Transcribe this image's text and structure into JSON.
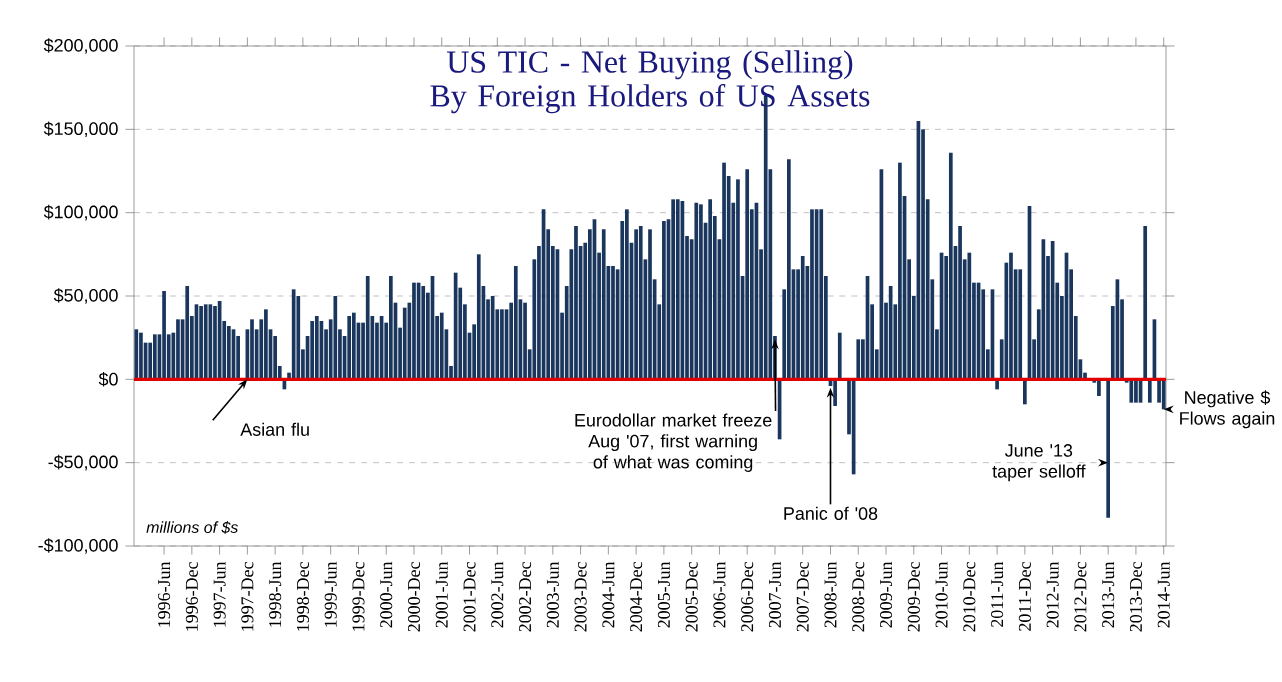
{
  "chart_data": {
    "type": "bar",
    "title": "US TIC - Net Buying (Selling) By Foreign Holders of US Assets",
    "categories": [
      null,
      null,
      null,
      null,
      null,
      null,
      "1996-Jun",
      null,
      null,
      null,
      null,
      null,
      "1996-Dec",
      null,
      null,
      null,
      null,
      null,
      "1997-Jun",
      null,
      null,
      null,
      null,
      null,
      "1997-Dec",
      null,
      null,
      null,
      null,
      null,
      "1998-Jun",
      null,
      null,
      null,
      null,
      null,
      "1998-Dec",
      null,
      null,
      null,
      null,
      null,
      "1999-Jun",
      null,
      null,
      null,
      null,
      null,
      "1999-Dec",
      null,
      null,
      null,
      null,
      null,
      "2000-Jun",
      null,
      null,
      null,
      null,
      null,
      "2000-Dec",
      null,
      null,
      null,
      null,
      null,
      "2001-Jun",
      null,
      null,
      null,
      null,
      null,
      "2001-Dec",
      null,
      null,
      null,
      null,
      null,
      "2002-Jun",
      null,
      null,
      null,
      null,
      null,
      "2002-Dec",
      null,
      null,
      null,
      null,
      null,
      "2003-Jun",
      null,
      null,
      null,
      null,
      null,
      "2003-Dec",
      null,
      null,
      null,
      null,
      null,
      "2004-Jun",
      null,
      null,
      null,
      null,
      null,
      "2004-Dec",
      null,
      null,
      null,
      null,
      null,
      "2005-Jun",
      null,
      null,
      null,
      null,
      null,
      "2005-Dec",
      null,
      null,
      null,
      null,
      null,
      "2006-Jun",
      null,
      null,
      null,
      null,
      null,
      "2006-Dec",
      null,
      null,
      null,
      null,
      null,
      "2007-Jun",
      null,
      null,
      null,
      null,
      null,
      "2007-Dec",
      null,
      null,
      null,
      null,
      null,
      "2008-Jun",
      null,
      null,
      null,
      null,
      null,
      "2008-Dec",
      null,
      null,
      null,
      null,
      null,
      "2009-Jun",
      null,
      null,
      null,
      null,
      null,
      "2009-Dec",
      null,
      null,
      null,
      null,
      null,
      "2010-Jun",
      null,
      null,
      null,
      null,
      null,
      "2010-Dec",
      null,
      null,
      null,
      null,
      null,
      "2011-Jun",
      null,
      null,
      null,
      null,
      null,
      "2011-Dec",
      null,
      null,
      null,
      null,
      null,
      "2012-Jun",
      null,
      null,
      null,
      null,
      null,
      "2012-Dec",
      null,
      null,
      null,
      null,
      null,
      "2013-Jun",
      null,
      null,
      null,
      null,
      null,
      "2013-Dec",
      null,
      null,
      null,
      null,
      null,
      "2014-Jun"
    ],
    "values": [
      30000,
      28000,
      22000,
      22000,
      27000,
      27000,
      53000,
      27000,
      28000,
      36000,
      36000,
      56000,
      38000,
      45000,
      44000,
      45000,
      45000,
      44000,
      47000,
      35000,
      32000,
      30000,
      26000,
      0,
      30000,
      36000,
      30000,
      36000,
      42000,
      30000,
      26000,
      8000,
      -6000,
      4000,
      54000,
      50000,
      18000,
      26000,
      35000,
      38000,
      35000,
      30000,
      36000,
      50000,
      30000,
      26000,
      38000,
      40000,
      34000,
      34000,
      62000,
      38000,
      34000,
      38000,
      34000,
      62000,
      46000,
      31000,
      43000,
      46000,
      58000,
      58000,
      56000,
      52000,
      62000,
      38000,
      40000,
      30000,
      8000,
      64000,
      55000,
      45000,
      28000,
      33000,
      75000,
      56000,
      48000,
      50000,
      42000,
      42000,
      42000,
      46000,
      68000,
      48000,
      46000,
      18000,
      72000,
      80000,
      102000,
      90000,
      80000,
      78000,
      40000,
      56000,
      78000,
      92000,
      80000,
      82000,
      90000,
      96000,
      76000,
      90000,
      68000,
      68000,
      66000,
      95000,
      102000,
      82000,
      90000,
      92000,
      72000,
      90000,
      60000,
      45000,
      95000,
      96000,
      108000,
      108000,
      107000,
      86000,
      84000,
      106000,
      105000,
      94000,
      108000,
      98000,
      84000,
      130000,
      122000,
      106000,
      120000,
      62000,
      126000,
      102000,
      106000,
      78000,
      170000,
      126000,
      26000,
      -36000,
      54000,
      132000,
      66000,
      66000,
      74000,
      68000,
      102000,
      102000,
      102000,
      62000,
      -4000,
      -16000,
      28000,
      0,
      -33000,
      -57000,
      24000,
      24000,
      62000,
      45000,
      18000,
      126000,
      46000,
      56000,
      45000,
      130000,
      110000,
      72000,
      50000,
      155000,
      150000,
      108000,
      60000,
      30000,
      76000,
      74000,
      136000,
      80000,
      92000,
      72000,
      76000,
      58000,
      58000,
      54000,
      18000,
      54000,
      -6000,
      24000,
      70000,
      76000,
      66000,
      66000,
      -15000,
      104000,
      24000,
      42000,
      84000,
      74000,
      83000,
      58000,
      50000,
      76000,
      66000,
      38000,
      12000,
      4000,
      0,
      -2000,
      -10000,
      null,
      -83000,
      44000,
      60000,
      48000,
      -2000,
      -14000,
      -14000,
      -14000,
      92000,
      -14000,
      36000,
      -14000,
      -18000
    ],
    "color": "#1b365d",
    "ylim": [
      -100000,
      200000
    ],
    "yticks": [
      {
        "value": -100000,
        "label": "-$100,000"
      },
      {
        "value": -50000,
        "label": "-$50,000"
      },
      {
        "value": 0,
        "label": "$0"
      },
      {
        "value": 50000,
        "label": "$50,000"
      },
      {
        "value": 100000,
        "label": "$100,000"
      },
      {
        "value": 150000,
        "label": "$150,000"
      },
      {
        "value": 200000,
        "label": "$200,000"
      }
    ],
    "grid": "y",
    "ref_lines": [
      {
        "axis": "y",
        "value": 0,
        "color": "#e00000"
      }
    ],
    "annotations": [
      {
        "text": "Asian flu",
        "x": "1997-Dec",
        "y": 0
      },
      {
        "text": "Eurodollar market freeze Aug '07, first warning of what was coming",
        "x": "2007-Jun",
        "y": 24000
      },
      {
        "text": "Panic of '08",
        "x": "2008-Jun",
        "y": -5000
      },
      {
        "text": "June '13 taper selloff",
        "x": "2013-Jun",
        "y": -50000
      },
      {
        "text": "Negative $ Flows again",
        "x": "2014-Jun",
        "y": -18000
      },
      "millions of $s"
    ]
  }
}
